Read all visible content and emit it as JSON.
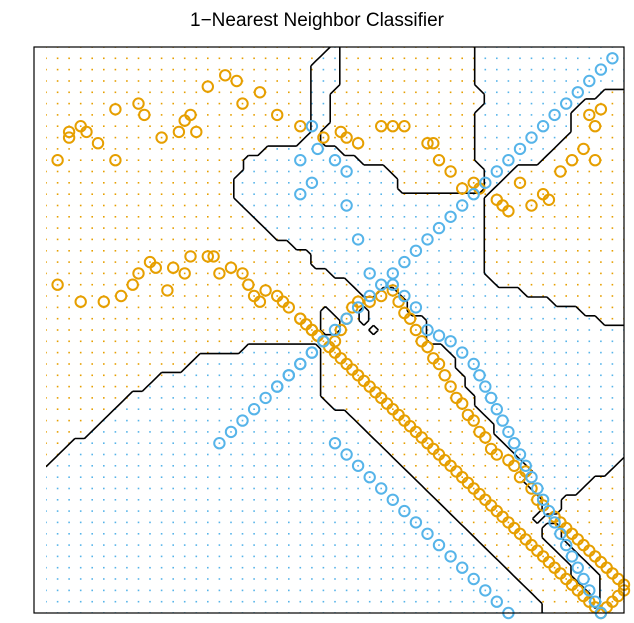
{
  "chart_data": {
    "type": "scatter",
    "title": "1−Nearest Neighbor Classifier",
    "xlabel": "",
    "ylabel": "",
    "xlim": [
      0,
      100
    ],
    "ylim": [
      0,
      100
    ],
    "grid": false,
    "colors": {
      "orange": "#E69F00",
      "blue": "#56B4E9",
      "boundary": "#000000"
    },
    "series": [
      {
        "class": "orange",
        "points": [
          [
            2,
            80
          ],
          [
            4,
            85
          ],
          [
            6,
            86
          ],
          [
            4,
            84
          ],
          [
            7,
            85
          ],
          [
            9,
            83
          ],
          [
            12,
            89
          ],
          [
            16,
            90
          ],
          [
            17,
            88
          ],
          [
            12,
            80
          ],
          [
            20,
            84
          ],
          [
            23,
            85
          ],
          [
            25,
            88
          ],
          [
            24,
            87
          ],
          [
            26,
            85
          ],
          [
            28,
            93
          ],
          [
            31,
            95
          ],
          [
            33,
            94
          ],
          [
            34,
            90
          ],
          [
            37,
            92
          ],
          [
            40,
            88
          ],
          [
            44,
            86
          ],
          [
            48,
            84
          ],
          [
            52,
            84
          ],
          [
            51,
            85
          ],
          [
            54,
            83
          ],
          [
            58,
            86
          ],
          [
            60,
            86
          ],
          [
            62,
            86
          ],
          [
            66,
            83
          ],
          [
            67,
            83
          ],
          [
            68,
            80
          ],
          [
            70,
            78
          ],
          [
            72,
            75
          ],
          [
            74,
            76
          ],
          [
            75,
            75
          ],
          [
            78,
            73
          ],
          [
            79,
            72
          ],
          [
            80,
            71
          ],
          [
            82,
            76
          ],
          [
            84,
            72
          ],
          [
            86,
            74
          ],
          [
            87,
            73
          ],
          [
            89,
            78
          ],
          [
            91,
            80
          ],
          [
            93,
            82
          ],
          [
            95,
            80
          ],
          [
            95,
            86
          ],
          [
            96,
            89
          ],
          [
            94,
            88
          ],
          [
            2,
            58
          ],
          [
            6,
            55
          ],
          [
            10,
            55
          ],
          [
            13,
            56
          ],
          [
            15,
            58
          ],
          [
            16,
            60
          ],
          [
            18,
            62
          ],
          [
            19,
            61
          ],
          [
            21,
            57
          ],
          [
            22,
            61
          ],
          [
            24,
            60
          ],
          [
            25,
            63
          ],
          [
            28,
            63
          ],
          [
            29,
            63
          ],
          [
            30,
            60
          ],
          [
            32,
            61
          ],
          [
            34,
            60
          ],
          [
            35,
            58
          ],
          [
            36,
            56
          ],
          [
            37,
            55
          ],
          [
            38,
            57
          ],
          [
            40,
            56
          ],
          [
            41,
            55
          ],
          [
            42,
            54
          ],
          [
            44,
            52
          ],
          [
            46,
            50
          ],
          [
            47,
            49
          ],
          [
            50,
            48
          ],
          [
            51,
            50
          ],
          [
            52,
            52
          ],
          [
            53,
            54
          ],
          [
            54,
            55
          ],
          [
            56,
            55
          ],
          [
            58,
            56
          ],
          [
            60,
            57
          ],
          [
            61,
            55
          ],
          [
            62,
            53
          ],
          [
            63,
            52
          ],
          [
            64,
            50
          ],
          [
            65,
            48
          ],
          [
            66,
            47
          ],
          [
            67,
            45
          ],
          [
            68,
            44
          ],
          [
            69,
            42
          ],
          [
            70,
            40
          ],
          [
            71,
            38
          ],
          [
            72,
            37
          ],
          [
            73,
            35
          ],
          [
            74,
            34
          ],
          [
            75,
            32
          ],
          [
            76,
            31
          ],
          [
            77,
            29
          ],
          [
            78,
            28
          ],
          [
            80,
            27
          ],
          [
            81,
            26
          ],
          [
            83,
            25
          ],
          [
            82,
            24
          ],
          [
            84,
            22
          ],
          [
            85,
            20
          ],
          [
            86,
            19
          ],
          [
            88,
            17
          ],
          [
            89,
            16
          ],
          [
            90,
            15
          ],
          [
            91,
            14
          ],
          [
            92,
            13
          ],
          [
            93,
            12
          ],
          [
            94,
            11
          ],
          [
            95,
            10
          ],
          [
            96,
            9
          ],
          [
            97,
            8
          ],
          [
            98,
            7
          ],
          [
            99,
            6
          ],
          [
            100,
            5
          ],
          [
            100,
            4
          ],
          [
            99,
            3
          ],
          [
            98,
            2
          ],
          [
            97,
            1
          ],
          [
            96,
            0
          ],
          [
            95,
            1
          ],
          [
            94,
            2
          ],
          [
            93,
            3
          ],
          [
            92,
            4
          ],
          [
            91,
            5
          ],
          [
            90,
            6
          ],
          [
            89,
            7
          ],
          [
            88,
            8
          ],
          [
            87,
            9
          ],
          [
            86,
            10
          ],
          [
            85,
            11
          ],
          [
            84,
            12
          ],
          [
            83,
            13
          ],
          [
            82,
            14
          ],
          [
            81,
            15
          ],
          [
            80,
            16
          ],
          [
            79,
            17
          ],
          [
            78,
            18
          ],
          [
            77,
            19
          ],
          [
            76,
            20
          ],
          [
            75,
            21
          ],
          [
            74,
            22
          ],
          [
            73,
            23
          ],
          [
            72,
            24
          ],
          [
            71,
            25
          ],
          [
            70,
            26
          ],
          [
            69,
            27
          ],
          [
            68,
            28
          ],
          [
            67,
            29
          ],
          [
            66,
            30
          ],
          [
            65,
            31
          ],
          [
            64,
            32
          ],
          [
            63,
            33
          ],
          [
            62,
            34
          ],
          [
            61,
            35
          ],
          [
            60,
            36
          ],
          [
            59,
            37
          ],
          [
            58,
            38
          ],
          [
            57,
            39
          ],
          [
            56,
            40
          ],
          [
            55,
            41
          ],
          [
            54,
            42
          ],
          [
            53,
            43
          ],
          [
            52,
            44
          ],
          [
            51,
            45
          ],
          [
            50,
            46
          ],
          [
            49,
            47
          ],
          [
            48,
            48
          ],
          [
            47,
            49
          ],
          [
            46,
            50
          ],
          [
            45,
            51
          ],
          [
            44,
            52
          ]
        ]
      },
      {
        "class": "blue",
        "points": [
          [
            44,
            74
          ],
          [
            46,
            76
          ],
          [
            44,
            80
          ],
          [
            46,
            86
          ],
          [
            47,
            82
          ],
          [
            50,
            80
          ],
          [
            52,
            78
          ],
          [
            52,
            72
          ],
          [
            54,
            66
          ],
          [
            56,
            60
          ],
          [
            60,
            58
          ],
          [
            62,
            56
          ],
          [
            64,
            54
          ],
          [
            66,
            50
          ],
          [
            68,
            49
          ],
          [
            70,
            48
          ],
          [
            72,
            46
          ],
          [
            74,
            44
          ],
          [
            75,
            42
          ],
          [
            76,
            40
          ],
          [
            77,
            38
          ],
          [
            78,
            36
          ],
          [
            79,
            34
          ],
          [
            80,
            32
          ],
          [
            81,
            30
          ],
          [
            82,
            28
          ],
          [
            83,
            26
          ],
          [
            84,
            24
          ],
          [
            85,
            22
          ],
          [
            86,
            20
          ],
          [
            87,
            18
          ],
          [
            88,
            16
          ],
          [
            89,
            14
          ],
          [
            90,
            12
          ],
          [
            91,
            10
          ],
          [
            92,
            8
          ],
          [
            93,
            6
          ],
          [
            94,
            4
          ],
          [
            95,
            2
          ],
          [
            96,
            0
          ],
          [
            40,
            40
          ],
          [
            42,
            42
          ],
          [
            44,
            44
          ],
          [
            46,
            46
          ],
          [
            48,
            48
          ],
          [
            50,
            50
          ],
          [
            52,
            52
          ],
          [
            54,
            54
          ],
          [
            56,
            56
          ],
          [
            58,
            58
          ],
          [
            60,
            60
          ],
          [
            62,
            62
          ],
          [
            64,
            64
          ],
          [
            66,
            66
          ],
          [
            68,
            68
          ],
          [
            70,
            70
          ],
          [
            72,
            72
          ],
          [
            74,
            74
          ],
          [
            76,
            76
          ],
          [
            78,
            78
          ],
          [
            80,
            80
          ],
          [
            82,
            82
          ],
          [
            84,
            84
          ],
          [
            86,
            86
          ],
          [
            88,
            88
          ],
          [
            90,
            90
          ],
          [
            92,
            92
          ],
          [
            94,
            94
          ],
          [
            96,
            96
          ],
          [
            98,
            98
          ],
          [
            30,
            30
          ],
          [
            32,
            32
          ],
          [
            34,
            34
          ],
          [
            36,
            36
          ],
          [
            38,
            38
          ],
          [
            40,
            40
          ],
          [
            42,
            42
          ],
          [
            44,
            44
          ],
          [
            46,
            46
          ],
          [
            48,
            48
          ],
          [
            50,
            30
          ],
          [
            52,
            28
          ],
          [
            54,
            26
          ],
          [
            56,
            24
          ],
          [
            58,
            22
          ],
          [
            60,
            20
          ],
          [
            62,
            18
          ],
          [
            64,
            16
          ],
          [
            66,
            14
          ],
          [
            68,
            12
          ],
          [
            70,
            10
          ],
          [
            72,
            8
          ],
          [
            74,
            6
          ],
          [
            76,
            4
          ],
          [
            78,
            2
          ],
          [
            80,
            0
          ]
        ]
      }
    ]
  }
}
